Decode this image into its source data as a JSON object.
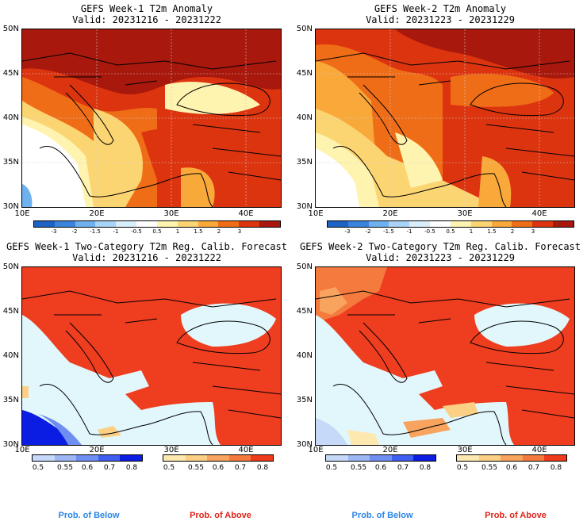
{
  "panels": [
    {
      "title1": "GEFS Week-1 T2m Anomaly",
      "title2": "Valid: 20231216 - 20231222",
      "kind": "anomaly"
    },
    {
      "title1": "GEFS Week-2 T2m Anomaly",
      "title2": "Valid: 20231223 - 20231229",
      "kind": "anomaly"
    },
    {
      "title1": "GEFS Week-1 Two-Category T2m Reg. Calib. Forecast",
      "title2": "Valid: 20231216 - 20231222",
      "kind": "prob"
    },
    {
      "title1": "GEFS Week-2 Two-Category T2m Reg. Calib. Forecast",
      "title2": "Valid: 20231223 - 20231229",
      "kind": "prob"
    }
  ],
  "lat_labels": [
    "50N",
    "45N",
    "40N",
    "35N",
    "30N"
  ],
  "lon_labels": [
    "10E",
    "20E",
    "30E",
    "40E"
  ],
  "anomaly_colorbar": {
    "labels": [
      "-3",
      "-2",
      "-1.5",
      "-1",
      "-0.5",
      "0.5",
      "1",
      "1.5",
      "2",
      "3"
    ],
    "colors": [
      "#1f62c6",
      "#3a84de",
      "#6fb0ee",
      "#a9d4f7",
      "#d9eefb",
      "#ffffff",
      "#fff3b0",
      "#fcd573",
      "#f9a83a",
      "#f06d18",
      "#dd3410",
      "#a8180c"
    ]
  },
  "prob_colorbar": {
    "below_labels": [
      "0.5",
      "0.55",
      "0.6",
      "0.7",
      "0.8"
    ],
    "below_colors": [
      "#c6d9f8",
      "#9cb7f4",
      "#6f8ef2",
      "#3e5ef0",
      "#0b1de3"
    ],
    "above_labels": [
      "0.5",
      "0.55",
      "0.6",
      "0.7",
      "0.8"
    ],
    "above_colors": [
      "#fde9b0",
      "#fbcf84",
      "#f8a35e",
      "#f47a3e",
      "#ef3b1c"
    ]
  },
  "legend": {
    "below": "Prob. of Below",
    "above": "Prob. of Above",
    "below_color": "#2b86e8",
    "above_color": "#e0231a"
  },
  "colors": {
    "sea": "#e2f7fb",
    "land_above": "#ee3d1f"
  }
}
